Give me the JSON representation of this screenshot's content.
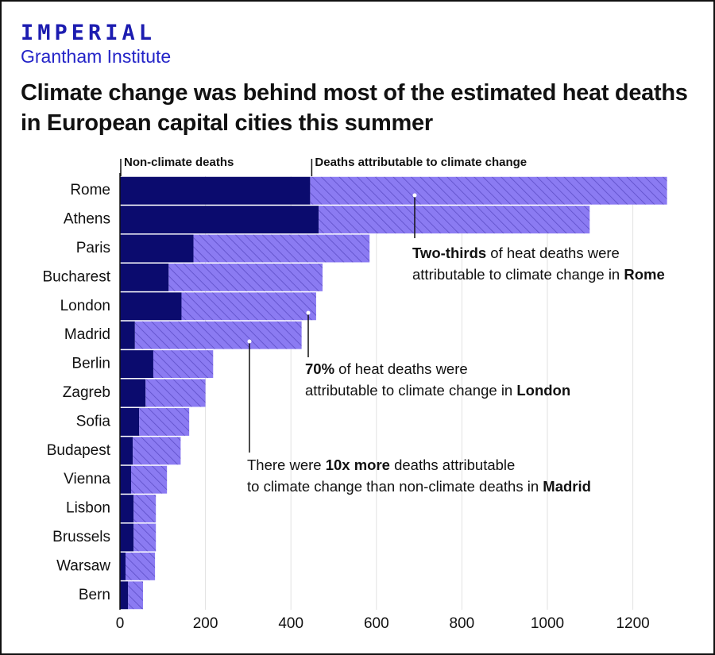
{
  "header": {
    "brand": "IMPERIAL",
    "institute": "Grantham Institute"
  },
  "chart_data": {
    "type": "stacked-bar-horizontal",
    "title": "Climate change was behind most of the estimated heat deaths in European capital cities this summer",
    "categories": [
      "Rome",
      "Athens",
      "Paris",
      "Bucharest",
      "London",
      "Madrid",
      "Berlin",
      "Zagreb",
      "Sofia",
      "Budapest",
      "Vienna",
      "Lisbon",
      "Brussels",
      "Warsaw",
      "Bern"
    ],
    "series": [
      {
        "name": "Non-climate deaths",
        "color": "#0b0b6e",
        "values": [
          445,
          465,
          172,
          114,
          144,
          35,
          78,
          60,
          45,
          30,
          26,
          32,
          32,
          13,
          19
        ]
      },
      {
        "name": "Deaths attributable to climate change",
        "color": "#8b7bf2",
        "hatch": true,
        "values": [
          835,
          634,
          412,
          360,
          315,
          390,
          140,
          140,
          117,
          112,
          84,
          52,
          52,
          69,
          35
        ]
      }
    ],
    "xlim": [
      0,
      1290
    ],
    "xticks": [
      0,
      200,
      400,
      600,
      800,
      1000,
      1200
    ],
    "grid": true,
    "annotations": [
      {
        "lines": [
          [
            {
              "text": "Two-thirds",
              "bold": true
            },
            {
              "text": " of heat deaths were",
              "bold": false
            }
          ],
          [
            {
              "text": "attributable to climate change in ",
              "bold": false
            },
            {
              "text": "Rome",
              "bold": true
            }
          ]
        ]
      },
      {
        "lines": [
          [
            {
              "text": "70%",
              "bold": true
            },
            {
              "text": " of heat deaths were",
              "bold": false
            }
          ],
          [
            {
              "text": "attributable to climate change in ",
              "bold": false
            },
            {
              "text": "London",
              "bold": true
            }
          ]
        ]
      },
      {
        "lines": [
          [
            {
              "text": "There were ",
              "bold": false
            },
            {
              "text": "10x more",
              "bold": true
            },
            {
              "text": " deaths attributable",
              "bold": false
            }
          ],
          [
            {
              "text": "to climate change than non-climate deaths in ",
              "bold": false
            },
            {
              "text": "Madrid",
              "bold": true
            }
          ]
        ]
      }
    ]
  }
}
